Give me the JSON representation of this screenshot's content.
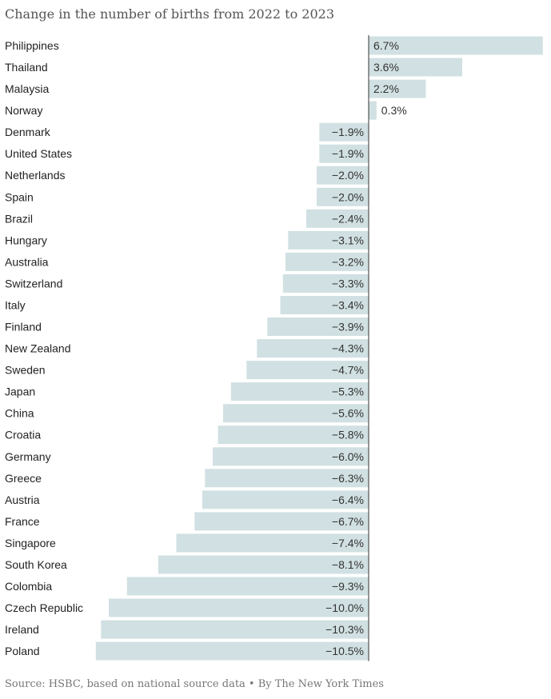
{
  "title": "Change in the number of births from 2022 to 2023",
  "source": "Source: HSBC, based on national source data • By The New York Times",
  "colors": {
    "bar": "#d1e0e2",
    "axis": "#333333",
    "label": "#222222",
    "value": "#333333"
  },
  "chart_data": {
    "type": "bar",
    "orientation": "horizontal",
    "title": "Change in the number of births from 2022 to 2023",
    "categories": [
      "Philippines",
      "Thailand",
      "Malaysia",
      "Norway",
      "Denmark",
      "United States",
      "Netherlands",
      "Spain",
      "Brazil",
      "Hungary",
      "Australia",
      "Switzerland",
      "Italy",
      "Finland",
      "New Zealand",
      "Sweden",
      "Japan",
      "China",
      "Croatia",
      "Germany",
      "Greece",
      "Austria",
      "France",
      "Singapore",
      "South Korea",
      "Colombia",
      "Czech Republic",
      "Ireland",
      "Poland"
    ],
    "values": [
      6.7,
      3.6,
      2.2,
      0.3,
      -1.9,
      -1.9,
      -2.0,
      -2.0,
      -2.4,
      -3.1,
      -3.2,
      -3.3,
      -3.4,
      -3.9,
      -4.3,
      -4.7,
      -5.3,
      -5.6,
      -5.8,
      -6.0,
      -6.3,
      -6.4,
      -6.7,
      -7.4,
      -8.1,
      -9.3,
      -10.0,
      -10.3,
      -10.5
    ],
    "value_labels": [
      "6.7%",
      "3.6%",
      "2.2%",
      "0.3%",
      "−1.9%",
      "−1.9%",
      "−2.0%",
      "−2.0%",
      "−2.4%",
      "−3.1%",
      "−3.2%",
      "−3.3%",
      "−3.4%",
      "−3.9%",
      "−4.3%",
      "−4.7%",
      "−5.3%",
      "−5.6%",
      "−5.8%",
      "−6.0%",
      "−6.3%",
      "−6.4%",
      "−6.7%",
      "−7.4%",
      "−8.1%",
      "−9.3%",
      "−10.0%",
      "−10.3%",
      "−10.5%"
    ],
    "unit": "%",
    "xlim": [
      -10.5,
      6.7
    ],
    "grid": false,
    "legend": "none"
  }
}
